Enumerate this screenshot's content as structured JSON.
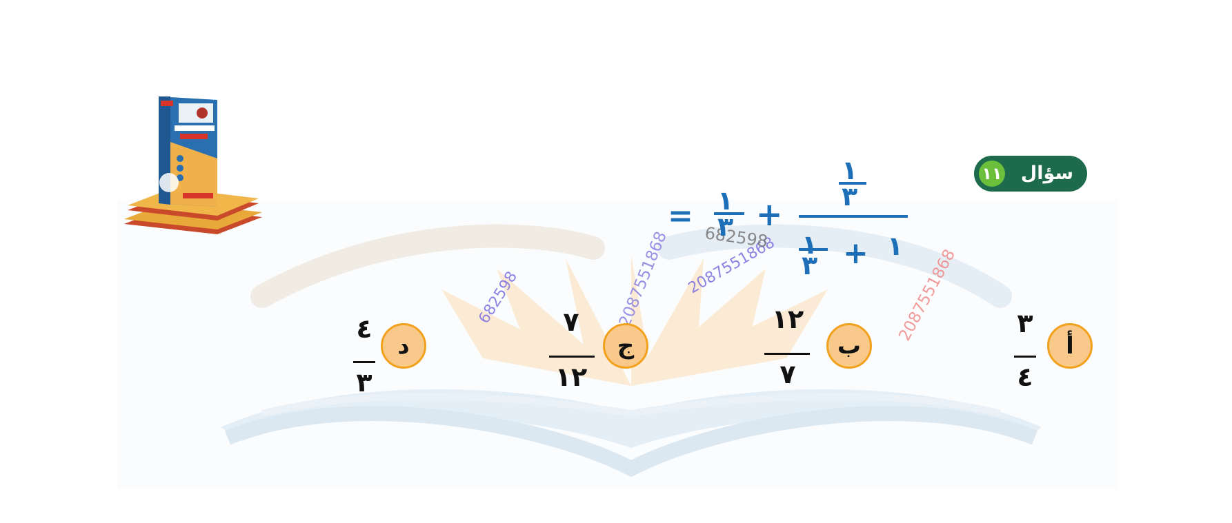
{
  "question": {
    "badge_word": "سؤال",
    "badge_number": "١١"
  },
  "expression": {
    "top_numerator": "١",
    "top_denominator": "٣",
    "bottom_whole": "١",
    "bottom_plus": "+",
    "bottom_numerator": "١",
    "bottom_denominator": "٣",
    "plus": "+",
    "right_numerator": "١",
    "right_denominator": "٣",
    "equals": "="
  },
  "options": [
    {
      "letter": "أ",
      "numerator": "٣",
      "denominator": "٤"
    },
    {
      "letter": "ب",
      "numerator": "١٢",
      "denominator": "٧"
    },
    {
      "letter": "ج",
      "numerator": "٧",
      "denominator": "١٢"
    },
    {
      "letter": "د",
      "numerator": "٤",
      "denominator": "٣"
    }
  ],
  "watermarks": [
    "682598",
    "2087551868",
    "2087551868",
    "2087551868",
    "682598"
  ],
  "colors": {
    "equation_blue": "#1d6fb8",
    "badge_green": "#1e6a4c",
    "badge_circle": "#6cbf3a",
    "option_fill": "#f8c98a",
    "option_border": "#f2a11c"
  }
}
